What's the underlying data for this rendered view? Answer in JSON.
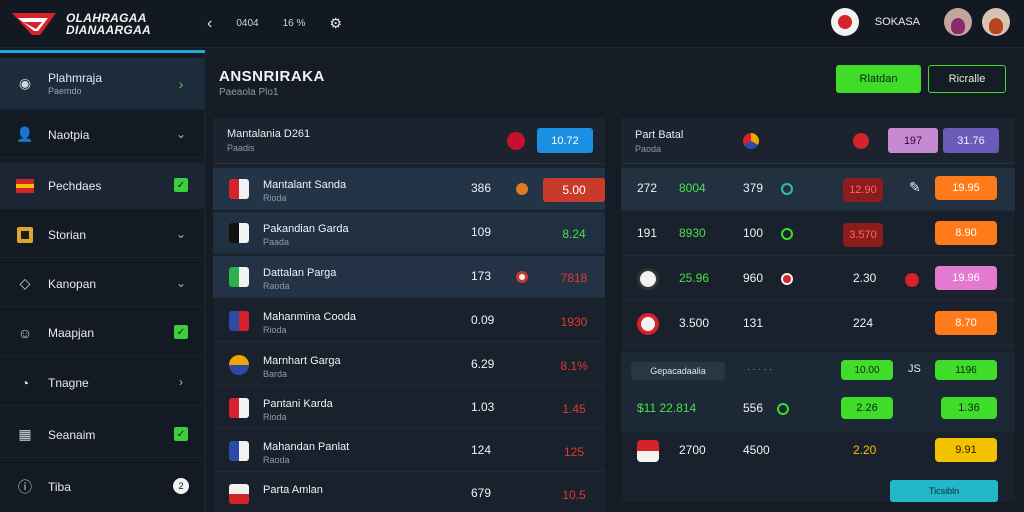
{
  "app": {
    "logo_line1": "OLAHRAGAA",
    "logo_line2": "DIANAARGAA",
    "colors": {
      "accent": "#2aa6d6",
      "green": "#3fdc2a",
      "red": "#e23b2d",
      "orange": "#ff7a1a",
      "bg": "#161c26"
    }
  },
  "topbar": {
    "back_icon": "chevron-left-icon",
    "nav": [
      "0404",
      "16 %"
    ],
    "settings_icon": "gear-icon",
    "user_name": "SOKASA"
  },
  "sidebar": {
    "items": [
      {
        "label": "Plahmraja",
        "sub": "Paemdo",
        "icon": "gamepad-icon",
        "right": "chevron-right"
      },
      {
        "label": "Naotpia",
        "sub": "",
        "icon": "user-icon",
        "right": "chevron-down"
      },
      {
        "label": "Pechdaes",
        "sub": "",
        "icon": "flag-icon",
        "right": "check"
      },
      {
        "label": "Storian",
        "sub": "",
        "icon": "shield-icon",
        "right": "chevron-down"
      },
      {
        "label": "Kanopan",
        "sub": "",
        "icon": "diamond-icon",
        "right": "chevron-down"
      },
      {
        "label": "Maapjan",
        "sub": "",
        "icon": "person-icon",
        "right": "check"
      },
      {
        "label": "Tnagne",
        "sub": "",
        "icon": "clock-icon",
        "right": "chevron-right"
      },
      {
        "label": "Seanaim",
        "sub": "",
        "icon": "calendar-icon",
        "right": "check"
      },
      {
        "label": "Tiba",
        "sub": "",
        "icon": "info-icon",
        "right": "badge"
      }
    ],
    "badge_text": "2"
  },
  "main": {
    "title": "ANSNRIRAKA",
    "subtitle": "Paeaola Plo1",
    "primary_button": "Rlatdan",
    "secondary_button": "Ricralle"
  },
  "left_panel": {
    "title": "Mantalania D261",
    "sub": "Paadis",
    "badge": "10.72",
    "rows": [
      {
        "name": "Mantalant Sanda",
        "sub": "Rioda",
        "value": "386",
        "odds": "5.00",
        "odds_style": "red-fill"
      },
      {
        "name": "Pakandian Garda",
        "sub": "Paada",
        "value": "109",
        "odds": "8.24",
        "odds_style": "green"
      },
      {
        "name": "Dattalan Parga",
        "sub": "Raoda",
        "value": "173",
        "odds": "7818",
        "odds_style": "red"
      },
      {
        "name": "Mahanmina Cooda",
        "sub": "Rioda",
        "value": "0.09",
        "odds": "1930",
        "odds_style": "red"
      },
      {
        "name": "Marnhart Garga",
        "sub": "Barda",
        "value": "6.29",
        "odds": "8.1%",
        "odds_style": "red"
      },
      {
        "name": "Pantani Karda",
        "sub": "Rioda",
        "value": "1.03",
        "odds": "1.45",
        "odds_style": "red"
      },
      {
        "name": "Mahandan Panlat",
        "sub": "Raoda",
        "value": "124",
        "odds": "125",
        "odds_style": "red"
      },
      {
        "name": "Parta Amlan",
        "sub": "",
        "value": "679",
        "odds": "10.5",
        "odds_style": "red"
      }
    ]
  },
  "right_panel": {
    "title": "Part Batal",
    "sub": "Paoda",
    "badge_a": "197",
    "badge_b": "31.76",
    "rows": [
      {
        "a": "272",
        "b": "8004",
        "c": "379",
        "d": "12.90",
        "odds": "19.95",
        "odds_color": "orange"
      },
      {
        "a": "191",
        "b": "8930",
        "c": "100",
        "d": "3.570",
        "odds": "8.90",
        "odds_color": "orange"
      },
      {
        "a": "",
        "b": "25.96",
        "c": "960",
        "d": "2.30",
        "odds": "19.96",
        "odds_color": "pink"
      },
      {
        "a": "3.500",
        "b": "",
        "c": "131",
        "d": "224",
        "odds": "8.70",
        "odds_color": "orange"
      },
      {
        "cap": "Gepacadaalia",
        "c": "",
        "pill_1": "10.00",
        "x": "JS",
        "pill_2": "1196"
      },
      {
        "a": "$11 22.814",
        "c": "556",
        "pill_1": "2.26",
        "pill_2": "1.36"
      },
      {
        "a": "2700",
        "c": "4500",
        "d": "2.20",
        "odds": "9.91",
        "odds_color": "yellow"
      }
    ],
    "footer_button": "Ticsibln"
  }
}
